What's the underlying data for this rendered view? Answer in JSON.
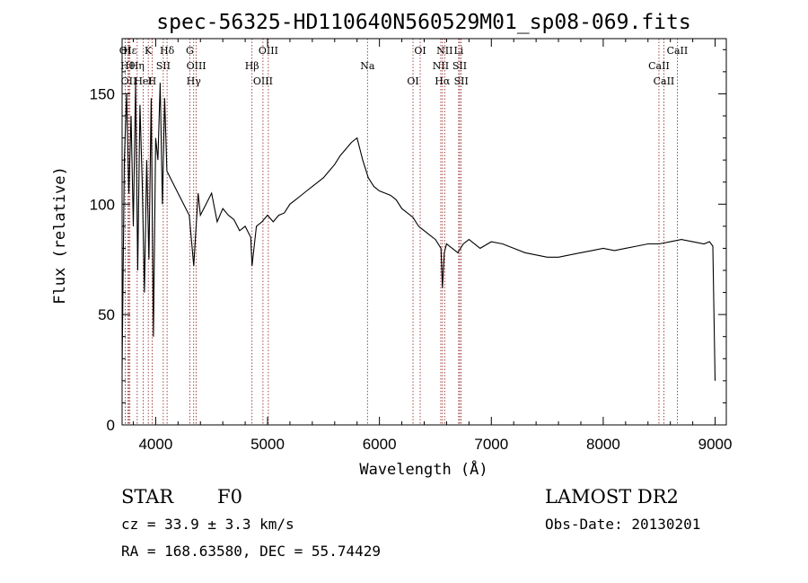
{
  "chart_data": {
    "type": "line",
    "title": "spec-56325-HD110640N560529M01_sp08-069.fits",
    "xlabel": "Wavelength (Å)",
    "ylabel": "Flux (relative)",
    "xlim": [
      3700,
      9100
    ],
    "ylim": [
      0,
      175
    ],
    "xticks": [
      4000,
      5000,
      6000,
      7000,
      8000,
      9000
    ],
    "yticks": [
      0,
      50,
      100,
      150
    ],
    "grid": false,
    "series": [
      {
        "color": "#000000",
        "x": [
          3700,
          3720,
          3740,
          3760,
          3780,
          3800,
          3820,
          3840,
          3860,
          3880,
          3900,
          3920,
          3940,
          3960,
          3980,
          4000,
          4020,
          4040,
          4060,
          4080,
          4100,
          4150,
          4200,
          4250,
          4300,
          4340,
          4380,
          4400,
          4450,
          4500,
          4550,
          4600,
          4650,
          4700,
          4750,
          4800,
          4850,
          4861,
          4900,
          4950,
          5000,
          5050,
          5100,
          5150,
          5200,
          5250,
          5300,
          5350,
          5400,
          5450,
          5500,
          5550,
          5600,
          5650,
          5700,
          5750,
          5800,
          5850,
          5900,
          5950,
          6000,
          6050,
          6100,
          6150,
          6200,
          6250,
          6300,
          6350,
          6400,
          6450,
          6500,
          6550,
          6563,
          6580,
          6600,
          6650,
          6700,
          6750,
          6800,
          6900,
          7000,
          7100,
          7200,
          7300,
          7400,
          7500,
          7600,
          7700,
          7800,
          7900,
          8000,
          8100,
          8200,
          8300,
          8400,
          8500,
          8600,
          8700,
          8800,
          8900,
          8950,
          8980,
          9000
        ],
        "y": [
          25,
          120,
          150,
          105,
          140,
          90,
          155,
          70,
          145,
          110,
          60,
          120,
          75,
          148,
          40,
          130,
          120,
          155,
          100,
          148,
          115,
          110,
          105,
          100,
          95,
          72,
          105,
          95,
          100,
          105,
          92,
          98,
          95,
          93,
          88,
          90,
          85,
          72,
          90,
          92,
          95,
          92,
          95,
          96,
          100,
          102,
          104,
          106,
          108,
          110,
          112,
          115,
          118,
          122,
          125,
          128,
          130,
          120,
          112,
          108,
          106,
          105,
          104,
          102,
          98,
          96,
          94,
          90,
          88,
          86,
          84,
          80,
          62,
          78,
          82,
          80,
          78,
          82,
          84,
          80,
          83,
          82,
          80,
          78,
          77,
          76,
          76,
          77,
          78,
          79,
          80,
          79,
          80,
          81,
          82,
          82,
          83,
          84,
          83,
          82,
          83,
          81,
          20
        ]
      }
    ],
    "annotations": [
      {
        "label": "OI",
        "x": 3728
      },
      {
        "label": "Hθ",
        "x": 3750
      },
      {
        "label": "OII",
        "x": 3760
      },
      {
        "label": "Hε",
        "x": 3770
      },
      {
        "label": "Hη",
        "x": 3835
      },
      {
        "label": "HeI",
        "x": 3889
      },
      {
        "label": "K",
        "x": 3934
      },
      {
        "label": "SII",
        "x": 4068
      },
      {
        "label": "H",
        "x": 3968
      },
      {
        "label": "Hδ",
        "x": 4102
      },
      {
        "label": "OIII",
        "x": 4363
      },
      {
        "label": "Hγ",
        "x": 4340
      },
      {
        "label": "G",
        "x": 4305
      },
      {
        "label": "Hβ",
        "x": 4861
      },
      {
        "label": "OIII",
        "x": 4959
      },
      {
        "label": "OIII",
        "x": 5007
      },
      {
        "label": "Na",
        "x": 5893
      },
      {
        "label": "OI",
        "x": 6300
      },
      {
        "label": "OI",
        "x": 6364
      },
      {
        "label": "NII",
        "x": 6548
      },
      {
        "label": "Hα",
        "x": 6563
      },
      {
        "label": "NII",
        "x": 6583
      },
      {
        "label": "SII",
        "x": 6717
      },
      {
        "label": "SII",
        "x": 6731
      },
      {
        "label": "Li",
        "x": 6708
      },
      {
        "label": "CaII",
        "x": 8498
      },
      {
        "label": "CaII",
        "x": 8542
      },
      {
        "label": "CaII",
        "x": 8662
      }
    ]
  },
  "info": {
    "class": "STAR",
    "subclass": "F0",
    "cz": "cz = 33.9 ± 3.3 km/s",
    "coords": "RA = 168.63580, DEC =  55.74429",
    "survey": "LAMOST DR2",
    "obs_date": "Obs-Date: 20130201"
  },
  "colors": {
    "line_marker": "#8b1a1a",
    "spectrum": "#000000"
  }
}
